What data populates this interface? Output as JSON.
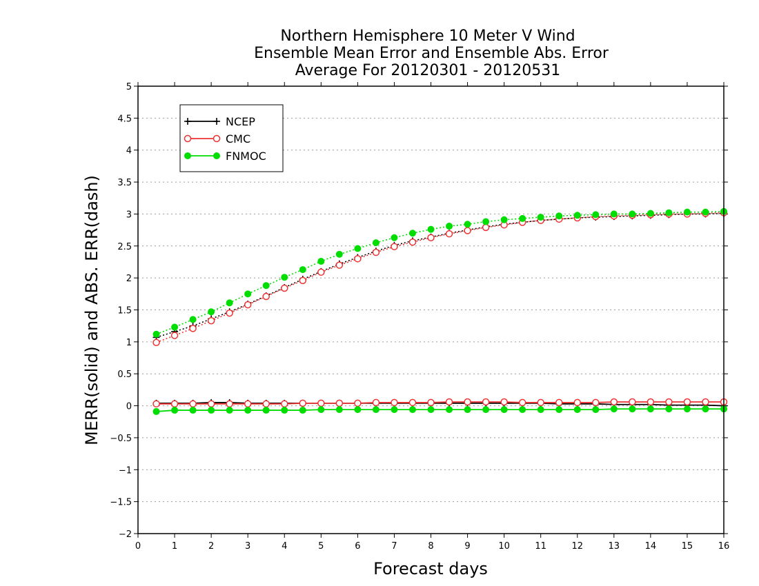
{
  "chart_data": {
    "type": "line",
    "title_lines": [
      "Northern Hemisphere 10 Meter V Wind",
      "Ensemble Mean Error and Ensemble Abs. Error",
      "Average For 20120301 - 20120531"
    ],
    "xlabel": "Forecast days",
    "ylabel": "MERR(solid) and ABS. ERR(dash)",
    "xlim": [
      0,
      16
    ],
    "ylim": [
      -2,
      5
    ],
    "xticks": [
      0,
      1,
      2,
      3,
      4,
      5,
      6,
      7,
      8,
      9,
      10,
      11,
      12,
      13,
      14,
      15,
      16
    ],
    "yticks": [
      -2,
      -1.5,
      -1,
      -0.5,
      0,
      0.5,
      1,
      1.5,
      2,
      2.5,
      3,
      3.5,
      4,
      4.5,
      5
    ],
    "ytick_labels": [
      "−2",
      "−1.5",
      "−1",
      "−0.5",
      "0",
      "0.5",
      "1",
      "1.5",
      "2",
      "2.5",
      "3",
      "3.5",
      "4",
      "4.5",
      "5"
    ],
    "grid": "horizontal dotted",
    "legend_position": "top-left",
    "x": [
      0.5,
      1,
      1.5,
      2,
      2.5,
      3,
      3.5,
      4,
      4.5,
      5,
      5.5,
      6,
      6.5,
      7,
      7.5,
      8,
      8.5,
      9,
      9.5,
      10,
      10.5,
      11,
      11.5,
      12,
      12.5,
      13,
      13.5,
      14,
      14.5,
      15,
      15.5,
      16
    ],
    "series": [
      {
        "name": "NCEP",
        "color": "#000000",
        "marker": "plus",
        "mean_error": [
          0.04,
          0.04,
          0.04,
          0.05,
          0.05,
          0.04,
          0.04,
          0.04,
          0.04,
          0.04,
          0.04,
          0.04,
          0.04,
          0.04,
          0.04,
          0.04,
          0.04,
          0.04,
          0.04,
          0.04,
          0.04,
          0.04,
          0.03,
          0.03,
          0.03,
          0.02,
          0.02,
          0.02,
          0.01,
          0.01,
          0.01,
          0.0
        ],
        "abs_error": [
          1.07,
          1.16,
          1.25,
          1.36,
          1.47,
          1.59,
          1.72,
          1.85,
          1.98,
          2.1,
          2.22,
          2.32,
          2.42,
          2.51,
          2.58,
          2.64,
          2.7,
          2.75,
          2.8,
          2.84,
          2.87,
          2.9,
          2.92,
          2.94,
          2.95,
          2.96,
          2.97,
          2.98,
          2.99,
          3.0,
          3.0,
          3.01
        ]
      },
      {
        "name": "CMC",
        "color": "#ee3333",
        "marker": "open-circle",
        "mean_error": [
          0.03,
          0.03,
          0.03,
          0.03,
          0.03,
          0.03,
          0.03,
          0.03,
          0.04,
          0.04,
          0.04,
          0.04,
          0.05,
          0.05,
          0.05,
          0.05,
          0.06,
          0.06,
          0.06,
          0.06,
          0.05,
          0.05,
          0.05,
          0.05,
          0.05,
          0.06,
          0.06,
          0.06,
          0.06,
          0.06,
          0.06,
          0.06
        ],
        "abs_error": [
          0.99,
          1.1,
          1.21,
          1.33,
          1.45,
          1.58,
          1.71,
          1.84,
          1.96,
          2.09,
          2.2,
          2.3,
          2.4,
          2.49,
          2.56,
          2.63,
          2.69,
          2.74,
          2.79,
          2.83,
          2.87,
          2.9,
          2.92,
          2.94,
          2.96,
          2.97,
          2.98,
          2.99,
          3.0,
          3.0,
          3.01,
          3.02
        ]
      },
      {
        "name": "FNMOC",
        "color": "#00dd00",
        "marker": "filled-circle",
        "mean_error": [
          -0.09,
          -0.07,
          -0.07,
          -0.07,
          -0.07,
          -0.07,
          -0.07,
          -0.07,
          -0.07,
          -0.06,
          -0.06,
          -0.06,
          -0.06,
          -0.06,
          -0.06,
          -0.06,
          -0.06,
          -0.06,
          -0.06,
          -0.06,
          -0.06,
          -0.06,
          -0.06,
          -0.06,
          -0.06,
          -0.05,
          -0.05,
          -0.05,
          -0.05,
          -0.05,
          -0.05,
          -0.05
        ],
        "abs_error": [
          1.12,
          1.23,
          1.35,
          1.47,
          1.61,
          1.75,
          1.88,
          2.01,
          2.13,
          2.26,
          2.37,
          2.46,
          2.55,
          2.63,
          2.7,
          2.76,
          2.81,
          2.84,
          2.88,
          2.91,
          2.93,
          2.95,
          2.97,
          2.98,
          2.99,
          3.0,
          3.0,
          3.01,
          3.02,
          3.03,
          3.03,
          3.04
        ]
      }
    ]
  }
}
